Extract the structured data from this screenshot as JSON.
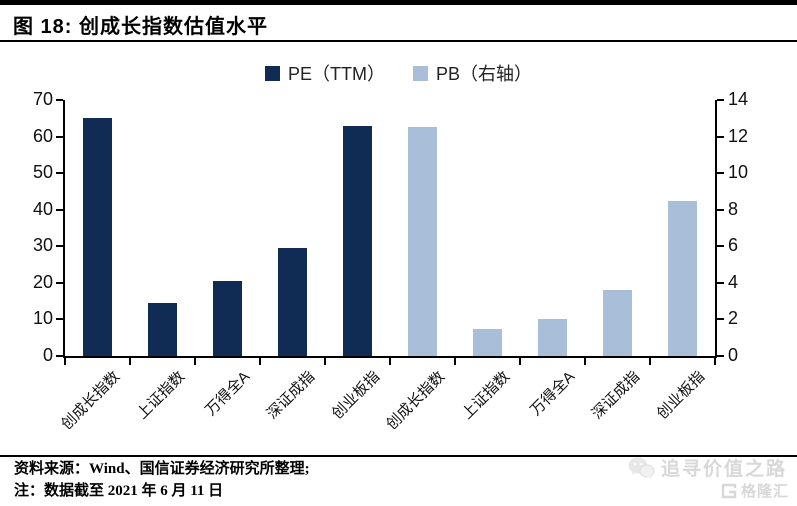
{
  "figure": {
    "title": "图 18: 创成长指数估值水平"
  },
  "chart_data": {
    "type": "bar",
    "title": "创成长指数估值水平",
    "categories": [
      "创成长指数",
      "上证指数",
      "万得全A",
      "深证成指",
      "创业板指",
      "创成长指数",
      "上证指数",
      "万得全A",
      "深证成指",
      "创业板指"
    ],
    "series": [
      {
        "name": "PE（TTM）",
        "axis": "left",
        "color": "#102c55",
        "values": [
          65.0,
          14.5,
          20.5,
          29.5,
          62.8,
          null,
          null,
          null,
          null,
          null
        ]
      },
      {
        "name": "PB（右轴）",
        "axis": "right",
        "color": "#a9bed9",
        "values": [
          null,
          null,
          null,
          null,
          null,
          12.5,
          1.5,
          2.0,
          3.6,
          8.5
        ]
      }
    ],
    "y_left_axis": {
      "min": 0,
      "max": 70,
      "ticks": [
        0,
        10,
        20,
        30,
        40,
        50,
        60,
        70
      ]
    },
    "y_right_axis": {
      "min": 0,
      "max": 14,
      "ticks": [
        0,
        2,
        4,
        6,
        8,
        10,
        12,
        14
      ]
    },
    "legend_position": "top-center",
    "grid": "off"
  },
  "footer": {
    "source": "资料来源：Wind、国信证券经济研究所整理;",
    "note": "注：数据截至 2021 年 6 月 11 日"
  },
  "watermark": {
    "account": "追寻价值之路",
    "logo": "格隆汇"
  }
}
